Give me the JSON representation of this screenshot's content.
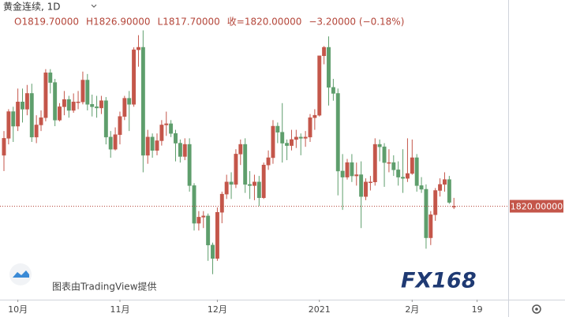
{
  "chart_data": {
    "type": "candlestick",
    "title": "黄金连续, 1D",
    "legend_ohlc": [
      "O1819.70000",
      "H1826.90000",
      "L1817.70000",
      "收=1820.00000",
      "−3.20000 (−0.18%)"
    ],
    "watermark": "图表由TradingView提供",
    "logo": "FX168",
    "up_color": "#c4564a",
    "down_color": "#5e9e6c",
    "ylim": [
      1743,
      1990
    ],
    "xlim": [
      -0.85,
      108.7
    ],
    "xticks": [
      {
        "value": 3,
        "label": "10月"
      },
      {
        "value": 25,
        "label": "11月"
      },
      {
        "value": 46,
        "label": "12月"
      },
      {
        "value": 68,
        "label": "2021"
      },
      {
        "value": 88,
        "label": "2月"
      },
      {
        "value": 102,
        "label": "19"
      }
    ],
    "last_price": {
      "value": 1820,
      "label": "1820.00000"
    },
    "open": [
      1862,
      1876,
      1898,
      1886,
      1906,
      1900,
      1913,
      1877,
      1887,
      1893,
      1930,
      1922,
      1891,
      1902,
      1908,
      1899,
      1906,
      1906,
      1924,
      1904,
      1902,
      1901,
      1907,
      1877,
      1867,
      1879,
      1894,
      1909,
      1904,
      1949,
      1951,
      1862,
      1877,
      1866,
      1874,
      1887,
      1888,
      1880,
      1872,
      1861,
      1871,
      1837,
      1806,
      1811,
      1812,
      1788,
      1777,
      1815,
      1830,
      1840,
      1838,
      1863,
      1871,
      1838,
      1837,
      1840,
      1827,
      1854,
      1860,
      1886,
      1881,
      1872,
      1870,
      1875,
      1877,
      1876,
      1877,
      1893,
      1895,
      1944,
      1951,
      1918,
      1913,
      1849,
      1844,
      1856,
      1845,
      1846,
      1828,
      1840,
      1840,
      1871,
      1869,
      1856,
      1856,
      1850,
      1844,
      1843,
      1847,
      1860,
      1837,
      1834,
      1794,
      1813,
      1833,
      1838,
      1842,
      1819.7
    ],
    "high": [
      1882,
      1900,
      1902,
      1917,
      1917,
      1920,
      1921,
      1895,
      1899,
      1933,
      1933,
      1925,
      1905,
      1915,
      1911,
      1913,
      1915,
      1931,
      1929,
      1912,
      1911,
      1911,
      1910,
      1882,
      1885,
      1898,
      1911,
      1915,
      1951,
      1961,
      1965,
      1883,
      1880,
      1880,
      1891,
      1898,
      1891,
      1883,
      1875,
      1876,
      1876,
      1839,
      1816,
      1816,
      1814,
      1790,
      1819,
      1832,
      1846,
      1848,
      1867,
      1875,
      1876,
      1849,
      1846,
      1845,
      1856,
      1866,
      1891,
      1889,
      1905,
      1875,
      1883,
      1883,
      1880,
      1882,
      1896,
      1900,
      1944,
      1952,
      1960,
      1925,
      1917,
      1863,
      1859,
      1863,
      1856,
      1857,
      1843,
      1845,
      1876,
      1875,
      1872,
      1867,
      1862,
      1857,
      1867,
      1876,
      1875,
      1863,
      1844,
      1838,
      1816,
      1835,
      1843,
      1848,
      1845,
      1826.9
    ],
    "low": [
      1849,
      1871,
      1873,
      1882,
      1889,
      1895,
      1873,
      1872,
      1882,
      1890,
      1913,
      1886,
      1890,
      1895,
      1893,
      1897,
      1900,
      1904,
      1899,
      1894,
      1893,
      1896,
      1871,
      1860,
      1866,
      1871,
      1891,
      1882,
      1902,
      1935,
      1848,
      1855,
      1860,
      1862,
      1870,
      1878,
      1877,
      1857,
      1856,
      1858,
      1832,
      1800,
      1800,
      1802,
      1775,
      1764,
      1775,
      1806,
      1826,
      1826,
      1835,
      1854,
      1831,
      1826,
      1825,
      1820,
      1826,
      1850,
      1855,
      1872,
      1856,
      1858,
      1866,
      1868,
      1862,
      1869,
      1873,
      1883,
      1894,
      1937,
      1903,
      1907,
      1829,
      1817,
      1842,
      1840,
      1837,
      1802,
      1825,
      1833,
      1837,
      1857,
      1836,
      1848,
      1845,
      1837,
      1831,
      1840,
      1846,
      1832,
      1831,
      1785,
      1788,
      1808,
      1828,
      1832,
      1822,
      1817.7
    ],
    "close": [
      1876,
      1898,
      1886,
      1906,
      1900,
      1913,
      1877,
      1887,
      1893,
      1930,
      1922,
      1891,
      1902,
      1908,
      1899,
      1906,
      1906,
      1924,
      1904,
      1902,
      1901,
      1907,
      1877,
      1867,
      1879,
      1894,
      1909,
      1904,
      1949,
      1951,
      1862,
      1877,
      1866,
      1874,
      1887,
      1888,
      1880,
      1872,
      1861,
      1871,
      1837,
      1806,
      1811,
      1812,
      1788,
      1777,
      1815,
      1830,
      1840,
      1838,
      1863,
      1871,
      1838,
      1837,
      1840,
      1827,
      1854,
      1860,
      1886,
      1881,
      1872,
      1870,
      1875,
      1877,
      1876,
      1877,
      1893,
      1895,
      1944,
      1951,
      1918,
      1913,
      1849,
      1844,
      1856,
      1845,
      1846,
      1828,
      1840,
      1840,
      1871,
      1869,
      1856,
      1856,
      1850,
      1844,
      1843,
      1847,
      1860,
      1837,
      1834,
      1794,
      1813,
      1833,
      1838,
      1842,
      1823.2,
      1820
    ]
  }
}
